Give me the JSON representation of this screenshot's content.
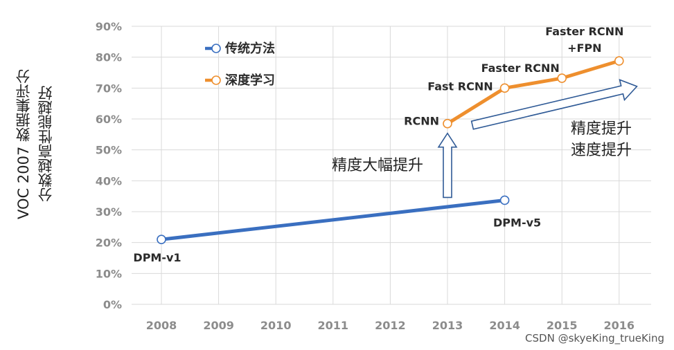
{
  "chart_data": {
    "type": "line",
    "ylabel_lines": [
      "VOC 2007 数据集评分",
      "分数越高性能越好"
    ],
    "categories": [
      "2008",
      "2009",
      "2010",
      "2011",
      "2012",
      "2013",
      "2014",
      "2015",
      "2016"
    ],
    "y_ticks": [
      "0%",
      "10%",
      "20%",
      "30%",
      "40%",
      "50%",
      "60%",
      "70%",
      "80%",
      "90%"
    ],
    "ylim": [
      0,
      90
    ],
    "grid": "vertical",
    "legend_placement": "top-left",
    "series": [
      {
        "name": "传统方法",
        "color": "#3a6fc0",
        "points": [
          {
            "x": "2008",
            "y": 21,
            "label": "DPM-v1"
          },
          {
            "x": "2014",
            "y": 33.7,
            "label": "DPM-v5"
          }
        ]
      },
      {
        "name": "深度学习",
        "color": "#ee8f2e",
        "points": [
          {
            "x": "2013",
            "y": 58.5,
            "label": "RCNN"
          },
          {
            "x": "2014",
            "y": 70,
            "label": "Fast RCNN"
          },
          {
            "x": "2015",
            "y": 73.2,
            "label": "Faster RCNN"
          },
          {
            "x": "2016",
            "y": 78.8,
            "label": "Faster RCNN\n+FPN"
          }
        ]
      }
    ],
    "annotations": {
      "up_arrow_label": "精度大幅提升",
      "diag_arrow_labels": [
        "精度提升",
        "速度提升"
      ]
    },
    "colors": {
      "grid": "#d9d9d9",
      "axis_text": "#8c8c8c",
      "label_text": "#2b2b2b",
      "arrow": "#2f5a96"
    }
  },
  "watermark": "CSDN @skyeKing_trueKing"
}
